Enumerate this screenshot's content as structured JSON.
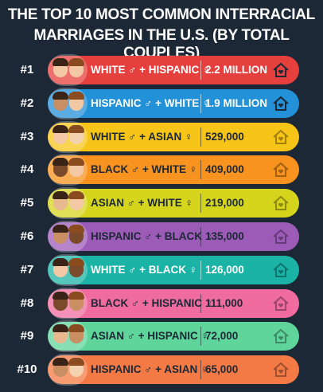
{
  "title_lines": [
    "THE TOP 10 MOST COMMON INTERRACIAL",
    "MARRIAGES IN THE U.S. (BY TOTAL COUPLES)"
  ],
  "rows": [
    {
      "rank": "#1",
      "pair": "WHITE ♂ + HISPANIC ♀",
      "count": "2.2 MILLION"
    },
    {
      "rank": "#2",
      "pair": "HISPANIC ♂ + WHITE ♀",
      "count": "1.9 MILLION"
    },
    {
      "rank": "#3",
      "pair": "WHITE ♂ + ASIAN ♀",
      "count": "529,000"
    },
    {
      "rank": "#4",
      "pair": "BLACK ♂ + WHITE ♀",
      "count": "409,000"
    },
    {
      "rank": "#5",
      "pair": "ASIAN ♂ + WHITE ♀",
      "count": "219,000"
    },
    {
      "rank": "#6",
      "pair": "HISPANIC ♂ + BLACK ♀",
      "count": "135,000"
    },
    {
      "rank": "#7",
      "pair": "WHITE ♂ + BLACK ♀",
      "count": "126,000"
    },
    {
      "rank": "#8",
      "pair": "BLACK ♂ + HISPANIC ♀",
      "count": "111,000"
    },
    {
      "rank": "#9",
      "pair": "ASIAN ♂ + HISPANIC ♀",
      "count": "72,000"
    },
    {
      "rank": "#10",
      "pair": "HISPANIC ♂ + ASIAN ♀",
      "count": "65,000"
    }
  ]
}
